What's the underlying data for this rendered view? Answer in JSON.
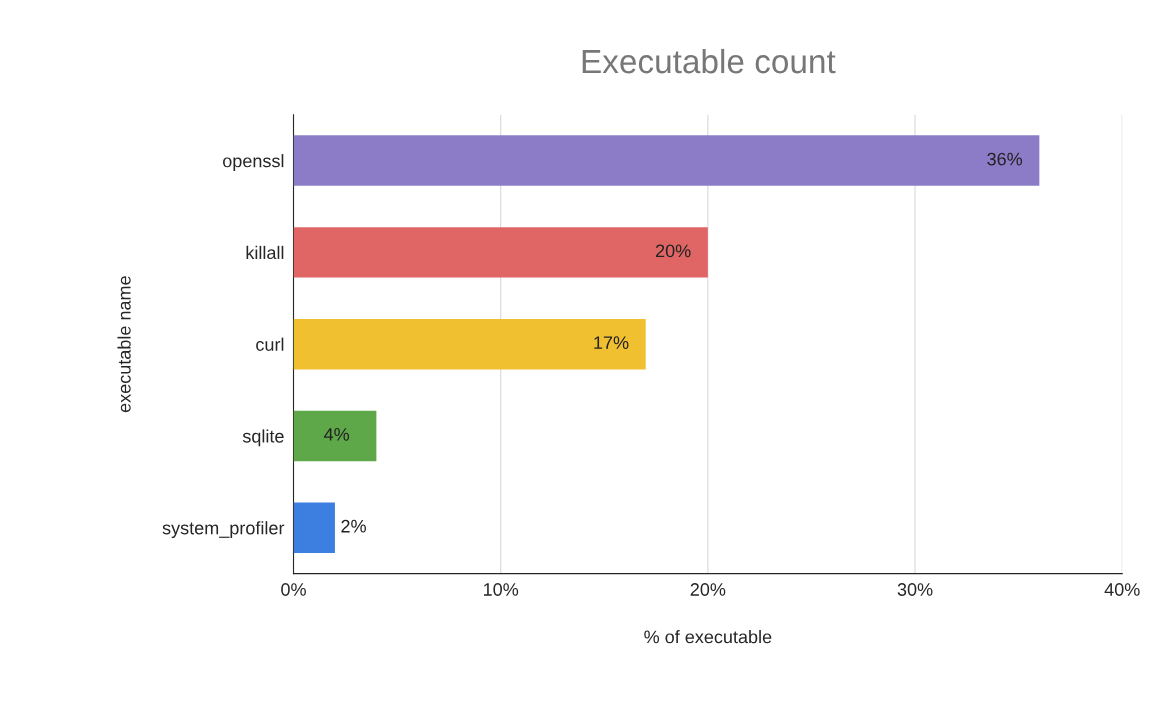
{
  "chart_data": {
    "type": "bar",
    "orientation": "horizontal",
    "title": "Executable count",
    "xlabel": "% of executable",
    "ylabel": "executable name",
    "categories": [
      "openssl",
      "killall",
      "curl",
      "sqlite",
      "system_profiler"
    ],
    "values": [
      36,
      20,
      17,
      4,
      2
    ],
    "colors": [
      "#8c7cc8",
      "#e06666",
      "#f0c030",
      "#5fa84a",
      "#3c7fe0"
    ],
    "value_labels": [
      "36%",
      "20%",
      "17%",
      "4%",
      "2%"
    ],
    "xlim": [
      0,
      40
    ],
    "xticks": [
      {
        "value": 0,
        "label": "0%"
      },
      {
        "value": 10,
        "label": "10%"
      },
      {
        "value": 20,
        "label": "20%"
      },
      {
        "value": 30,
        "label": "30%"
      },
      {
        "value": 40,
        "label": "40%"
      }
    ],
    "grid": "x"
  }
}
